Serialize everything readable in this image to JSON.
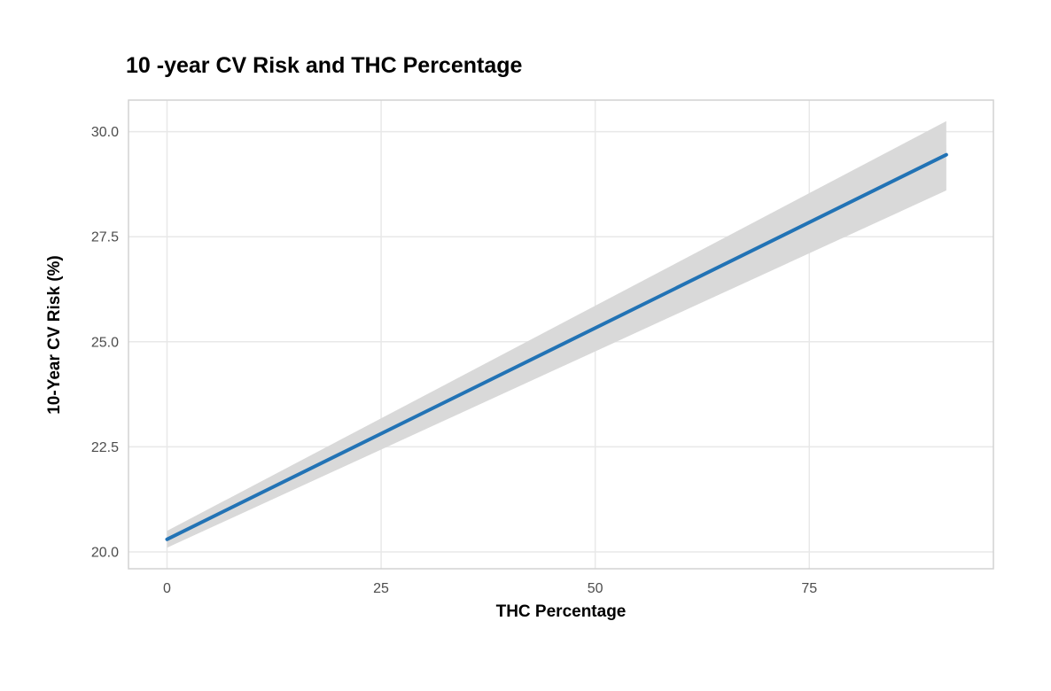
{
  "chart_data": {
    "type": "line",
    "title": "10 -year CV Risk and THC Percentage",
    "xlabel": "THC Percentage",
    "ylabel": "10-Year CV Risk (%)",
    "x_ticks": [
      "0",
      "25",
      "50",
      "75"
    ],
    "y_ticks": [
      "20.0",
      "22.5",
      "25.0",
      "27.5",
      "30.0"
    ],
    "xlim": [
      -4.5,
      96.5
    ],
    "ylim": [
      19.6,
      30.75
    ],
    "grid": "major gridlines only, light gray on white panel with light gray border",
    "legend": "none",
    "series": [
      {
        "name": "confidence-ribbon",
        "type": "area",
        "color": "#d9d9d9",
        "x": [
          0,
          91
        ],
        "y_upper": [
          20.5,
          30.25
        ],
        "y_lower": [
          20.1,
          28.6
        ]
      },
      {
        "name": "fitted-line",
        "type": "line",
        "color": "#2273b5",
        "x": [
          0,
          91
        ],
        "y": [
          20.3,
          29.45
        ]
      }
    ],
    "styles": {
      "background": "#ffffff",
      "line_color": "#2273b5",
      "ribbon_color": "#d9d9d9",
      "grid_color": "#e8e8e8",
      "panel_border_color": "#d2d2d2",
      "tick_label_color": "#4d4d4d",
      "title_color": "#000000"
    }
  }
}
